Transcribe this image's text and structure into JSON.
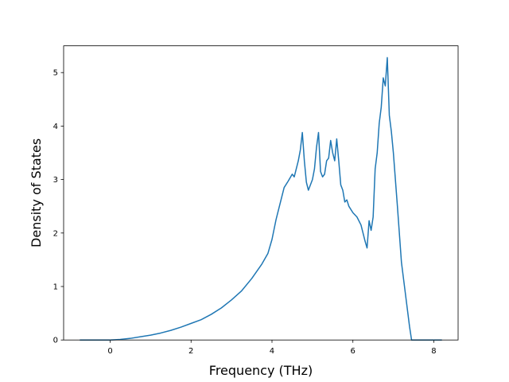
{
  "chart_data": {
    "type": "line",
    "title": "",
    "xlabel": "Frequency (THz)",
    "ylabel": "Density of States",
    "xlim": [
      -1.15,
      8.6
    ],
    "ylim": [
      0,
      5.5
    ],
    "xticks": [
      0,
      2,
      4,
      6,
      8
    ],
    "yticks": [
      0,
      1,
      2,
      3,
      4,
      5
    ],
    "grid": false,
    "legend": "none",
    "series": [
      {
        "color": "#1f77b4",
        "x": [
          -0.75,
          -0.5,
          -0.25,
          0.0,
          0.25,
          0.5,
          0.75,
          1.0,
          1.25,
          1.5,
          1.75,
          2.0,
          2.25,
          2.5,
          2.75,
          3.0,
          3.25,
          3.5,
          3.75,
          3.9,
          4.0,
          4.1,
          4.2,
          4.3,
          4.4,
          4.5,
          4.55,
          4.6,
          4.65,
          4.7,
          4.75,
          4.8,
          4.85,
          4.9,
          5.0,
          5.05,
          5.1,
          5.15,
          5.2,
          5.25,
          5.3,
          5.35,
          5.4,
          5.45,
          5.5,
          5.55,
          5.6,
          5.65,
          5.7,
          5.75,
          5.8,
          5.85,
          5.9,
          6.0,
          6.1,
          6.2,
          6.3,
          6.35,
          6.4,
          6.45,
          6.5,
          6.55,
          6.6,
          6.65,
          6.7,
          6.75,
          6.8,
          6.85,
          6.9,
          6.95,
          7.0,
          7.1,
          7.2,
          7.3,
          7.4,
          7.45,
          7.5,
          7.7,
          8.0,
          8.2
        ],
        "values": [
          0.0,
          0.0,
          0.0,
          0.0,
          0.01,
          0.03,
          0.06,
          0.09,
          0.13,
          0.18,
          0.24,
          0.31,
          0.38,
          0.48,
          0.6,
          0.75,
          0.92,
          1.15,
          1.42,
          1.62,
          1.88,
          2.25,
          2.55,
          2.85,
          2.97,
          3.1,
          3.05,
          3.2,
          3.35,
          3.55,
          3.88,
          3.35,
          2.95,
          2.8,
          3.0,
          3.2,
          3.6,
          3.88,
          3.15,
          3.05,
          3.1,
          3.35,
          3.4,
          3.73,
          3.5,
          3.35,
          3.76,
          3.35,
          2.9,
          2.8,
          2.58,
          2.62,
          2.5,
          2.38,
          2.3,
          2.15,
          1.85,
          1.72,
          2.23,
          2.05,
          2.3,
          3.2,
          3.5,
          4.05,
          4.35,
          4.9,
          4.75,
          5.28,
          4.2,
          3.9,
          3.5,
          2.5,
          1.45,
          0.85,
          0.25,
          0.0,
          0.0,
          0.0,
          0.0,
          0.0
        ]
      }
    ]
  }
}
